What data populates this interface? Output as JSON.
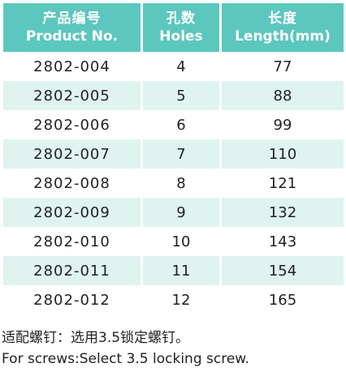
{
  "table": {
    "headers": [
      {
        "cn": "产品编号",
        "en": "Product No."
      },
      {
        "cn": "孔数",
        "en": "Holes"
      },
      {
        "cn": "长度",
        "en": "Length(mm)"
      }
    ],
    "rows": [
      {
        "product_no": "2802-004",
        "holes": "4",
        "length": "77"
      },
      {
        "product_no": "2802-005",
        "holes": "5",
        "length": "88"
      },
      {
        "product_no": "2802-006",
        "holes": "6",
        "length": "99"
      },
      {
        "product_no": "2802-007",
        "holes": "7",
        "length": "110"
      },
      {
        "product_no": "2802-008",
        "holes": "8",
        "length": "121"
      },
      {
        "product_no": "2802-009",
        "holes": "9",
        "length": "132"
      },
      {
        "product_no": "2802-010",
        "holes": "10",
        "length": "143"
      },
      {
        "product_no": "2802-011",
        "holes": "11",
        "length": "154"
      },
      {
        "product_no": "2802-012",
        "holes": "12",
        "length": "165"
      }
    ]
  },
  "notes": {
    "cn": "适配螺钉：选用3.5锁定螺钉。",
    "en": "For screws:Select 3.5 locking screw."
  },
  "colors": {
    "header_bg": "#5cc7be",
    "shaded_row_bg": "#dff3ef"
  }
}
